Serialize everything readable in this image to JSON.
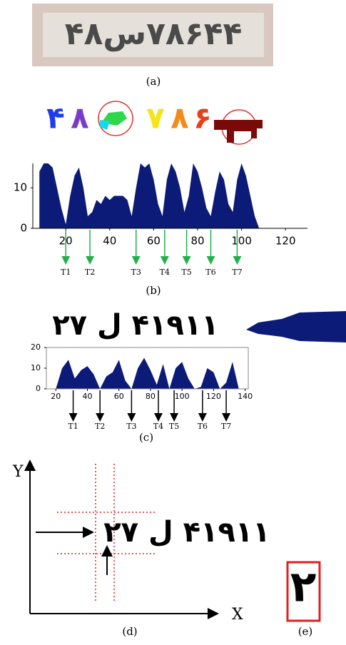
{
  "captions": [
    "(a)",
    "(b)",
    "(c)",
    "(d)",
    "(e)"
  ],
  "plate_text": "۴۸س۷۸۶۴۴",
  "segmented_chars": [
    {
      "text": "۴",
      "color": "#1e3cf0"
    },
    {
      "text": "۸",
      "color": "#7a3cc8"
    },
    {
      "text": "۷",
      "color": "#f5e41a"
    },
    {
      "text": "۸",
      "color": "#f58a1a"
    },
    {
      "text": "۶",
      "color": "#e8401a"
    }
  ],
  "chart_data": [
    {
      "type": "area",
      "color": "#0c1a78",
      "arrow_color": "#22b04a",
      "x": [
        8,
        10,
        12,
        14,
        16,
        18,
        20,
        22,
        24,
        26,
        28,
        30,
        32,
        34,
        36,
        38,
        40,
        42,
        44,
        46,
        48,
        50,
        52,
        54,
        56,
        58,
        60,
        62,
        64,
        66,
        68,
        70,
        72,
        74,
        76,
        78,
        80,
        82,
        84,
        86,
        88,
        90,
        92,
        94,
        96,
        98,
        100,
        102,
        104,
        106,
        108
      ],
      "values": [
        14,
        16,
        16,
        15,
        10,
        5,
        1,
        8,
        13,
        15,
        10,
        3,
        4,
        7,
        6,
        8,
        7,
        8,
        8,
        8,
        7,
        3,
        10,
        16,
        15,
        16,
        12,
        6,
        3,
        12,
        16,
        14,
        10,
        4,
        8,
        16,
        14,
        10,
        5,
        3,
        9,
        14,
        12,
        6,
        4,
        12,
        16,
        13,
        8,
        3,
        0
      ],
      "xlim": [
        5,
        130
      ],
      "xticks": [
        20,
        40,
        60,
        80,
        100,
        120
      ],
      "ylim": [
        0,
        16
      ],
      "yticks": [
        0,
        10
      ],
      "thresholds": [
        {
          "label": "T1",
          "x": 20
        },
        {
          "label": "T2",
          "x": 31
        },
        {
          "label": "T3",
          "x": 52
        },
        {
          "label": "T4",
          "x": 65
        },
        {
          "label": "T5",
          "x": 75
        },
        {
          "label": "T6",
          "x": 86
        },
        {
          "label": "T7",
          "x": 98
        }
      ]
    },
    {
      "type": "area",
      "color": "#0c1a78",
      "arrow_color": "#000000",
      "box": true,
      "text": "۲۷ ل ۴۱۹۱۱",
      "x": [
        20,
        24,
        28,
        32,
        36,
        40,
        44,
        48,
        52,
        56,
        60,
        64,
        68,
        72,
        76,
        80,
        84,
        88,
        92,
        96,
        100,
        104,
        108,
        112,
        116,
        120,
        124,
        128,
        132,
        136
      ],
      "values": [
        0,
        10,
        14,
        5,
        9,
        11,
        7,
        0,
        6,
        8,
        14,
        4,
        0,
        10,
        15,
        9,
        2,
        12,
        0,
        10,
        13,
        5,
        0,
        1,
        10,
        8,
        0,
        3,
        13,
        0
      ],
      "xlim": [
        14,
        142
      ],
      "xticks": [
        20,
        40,
        60,
        80,
        100,
        120,
        140
      ],
      "ylim": [
        0,
        20
      ],
      "yticks": [
        0,
        10,
        20
      ],
      "thresholds": [
        {
          "label": "T1",
          "x": 31
        },
        {
          "label": "T2",
          "x": 48
        },
        {
          "label": "T3",
          "x": 68
        },
        {
          "label": "T4",
          "x": 85
        },
        {
          "label": "T5",
          "x": 95
        },
        {
          "label": "T6",
          "x": 113
        },
        {
          "label": "T7",
          "x": 128
        }
      ]
    }
  ],
  "panel_d": {
    "text": "۲۷ ل ۴۱۹۱۱",
    "x_label": "X",
    "y_label": "Y"
  },
  "panel_e": {
    "text": "۲"
  }
}
